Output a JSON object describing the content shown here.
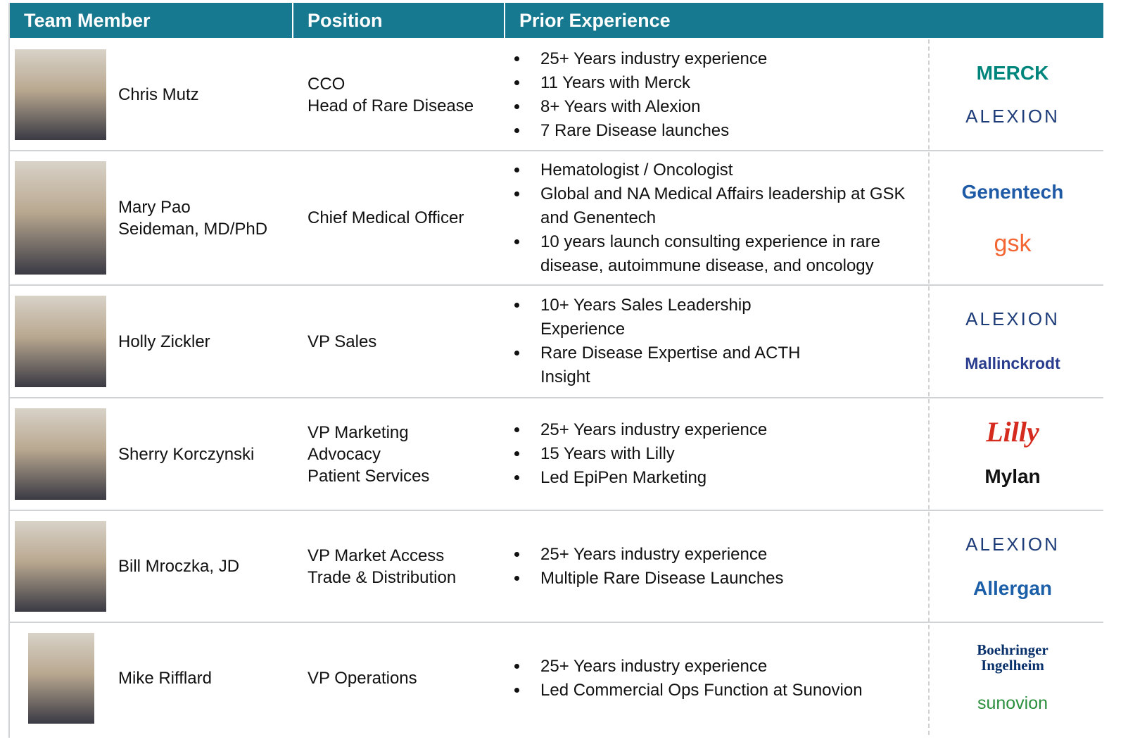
{
  "table": {
    "headers": [
      "Team Member",
      "Position",
      "Prior Experience"
    ],
    "rows": [
      {
        "name": [
          "Chris Mutz"
        ],
        "position": [
          "CCO",
          "Head of Rare Disease"
        ],
        "experience": [
          "25+ Years industry experience",
          "11 Years with Merck",
          "8+ Years with Alexion",
          "7 Rare Disease launches"
        ],
        "logos": [
          {
            "label": "MERCK",
            "color": "#00857c"
          },
          {
            "label": "ALEXION",
            "color": "#1d3c78"
          }
        ]
      },
      {
        "name": [
          "Mary Pao",
          "Seideman, MD/PhD"
        ],
        "position": [
          "Chief Medical Officer"
        ],
        "experience": [
          "Hematologist / Oncologist",
          "Global and NA Medical Affairs leadership at GSK and Genentech",
          "10 years launch consulting experience in rare disease, autoimmune disease, and oncology"
        ],
        "logos": [
          {
            "label": "Genentech",
            "color": "#1f5aa6"
          },
          {
            "label": "gsk",
            "color": "#f36633"
          }
        ]
      },
      {
        "name": [
          "Holly Zickler"
        ],
        "position": [
          "VP Sales"
        ],
        "experience": [
          "10+ Years Sales Leadership Experience",
          "Rare Disease Expertise and ACTH Insight"
        ],
        "logos": [
          {
            "label": "ALEXION",
            "color": "#1d3c78"
          },
          {
            "label": "Mallinckrodt",
            "color": "#2b3d8f"
          }
        ]
      },
      {
        "name": [
          "Sherry Korczynski"
        ],
        "position": [
          "VP Marketing",
          "Advocacy",
          "Patient Services"
        ],
        "experience": [
          "25+ Years industry experience",
          "15 Years with Lilly",
          "Led EpiPen Marketing"
        ],
        "logos": [
          {
            "label": "Lilly",
            "color": "#d52b1e"
          },
          {
            "label": "Mylan",
            "color": "#111111"
          }
        ]
      },
      {
        "name": [
          "Bill Mroczka, JD"
        ],
        "position": [
          "VP Market Access",
          "Trade & Distribution"
        ],
        "experience": [
          "25+ Years industry experience",
          "Multiple Rare Disease Launches"
        ],
        "logos": [
          {
            "label": "ALEXION",
            "color": "#1d3c78"
          },
          {
            "label": "Allergan",
            "color": "#1a5fa8"
          }
        ]
      },
      {
        "name": [
          "Mike Rifflard"
        ],
        "position": [
          "VP Operations"
        ],
        "experience": [
          "25+ Years industry experience",
          "Led Commercial Ops Function at Sunovion"
        ],
        "logos": [
          {
            "label": "Boehringer Ingelheim",
            "color": "#08306b"
          },
          {
            "label": "sunovion",
            "color": "#2a8f3d"
          }
        ]
      }
    ]
  }
}
